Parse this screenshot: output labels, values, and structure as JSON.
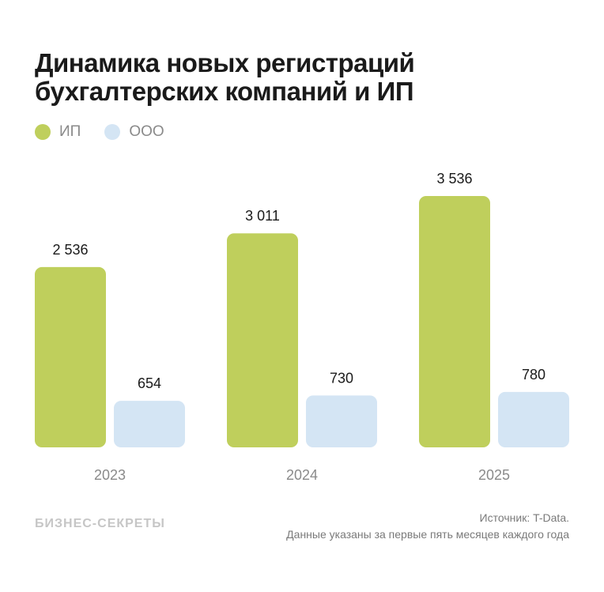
{
  "title_line1": "Динамика новых регистраций",
  "title_line2": "бухгалтерских компаний и ИП",
  "colors": {
    "ip": "#bfcf5c",
    "ooo": "#d4e5f4"
  },
  "chart_data": {
    "type": "bar",
    "categories": [
      "2023",
      "2024",
      "2025"
    ],
    "series": [
      {
        "name": "ИП",
        "values": [
          2536,
          3011,
          3536
        ],
        "labels": [
          "2 536",
          "3 011",
          "3 536"
        ]
      },
      {
        "name": "ООО",
        "values": [
          654,
          730,
          780
        ],
        "labels": [
          "654",
          "730",
          "780"
        ]
      }
    ],
    "legend": "top-left",
    "grid": false,
    "ylim": [
      0,
      3536
    ]
  },
  "footer": {
    "logo": "БИЗНЕС-СЕКРЕТЫ",
    "source": "Источник: T-Data.",
    "note": "Данные указаны за первые пять месяцев каждого года"
  }
}
